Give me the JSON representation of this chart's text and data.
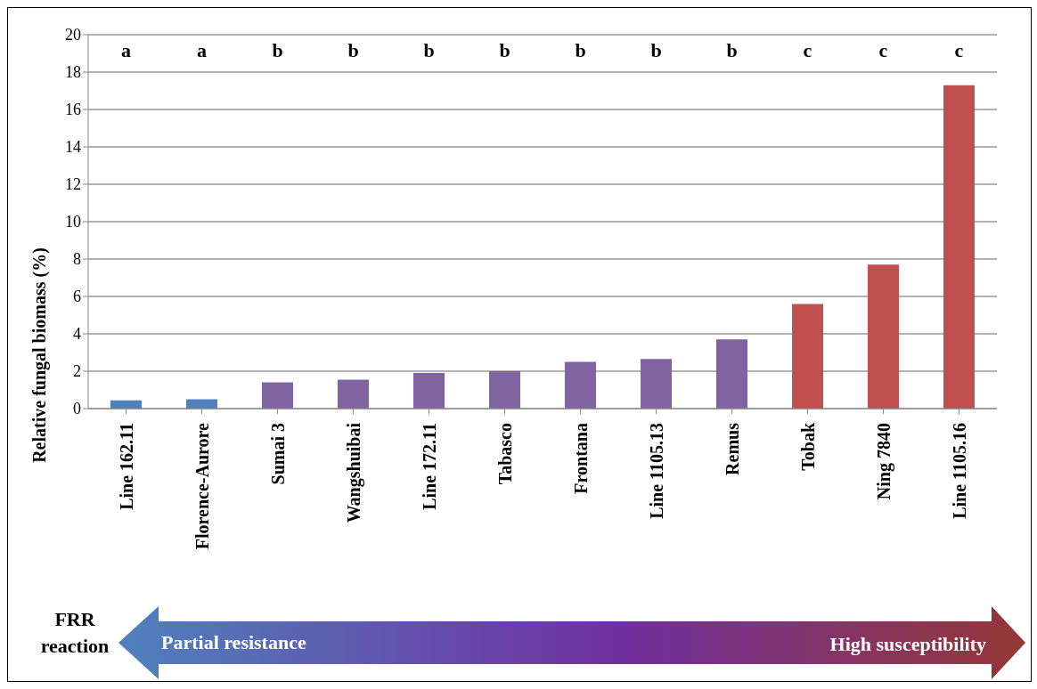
{
  "chart_data": {
    "type": "bar",
    "ylabel": "Relative fungal biomass (%)",
    "categories": [
      "Line 162.11",
      "Florence-Aurore",
      "Sumai 3",
      "Wangshuibai",
      "Line 172.11",
      "Tabasco",
      "Frontana",
      "Line 1105.13",
      "Remus",
      "Tobak",
      "Ning 7840",
      "Line 1105.16"
    ],
    "values": [
      0.44,
      0.5,
      1.4,
      1.55,
      1.9,
      2.0,
      2.5,
      2.65,
      3.7,
      5.6,
      7.7,
      17.3
    ],
    "colors": [
      "#4f81bd",
      "#4f81bd",
      "#8064a2",
      "#8064a2",
      "#8064a2",
      "#8064a2",
      "#8064a2",
      "#8064a2",
      "#8064a2",
      "#c0504d",
      "#c0504d",
      "#c0504d"
    ],
    "ylim": [
      0,
      20
    ],
    "yticks": [
      0,
      2,
      4,
      6,
      8,
      10,
      12,
      14,
      16,
      18,
      20
    ],
    "grid": "y",
    "annotations": [
      "a",
      "a",
      "b",
      "b",
      "b",
      "b",
      "b",
      "b",
      "b",
      "c",
      "c",
      "c",
      "FRR reaction",
      "Partial resistance",
      "High susceptibility"
    ]
  }
}
